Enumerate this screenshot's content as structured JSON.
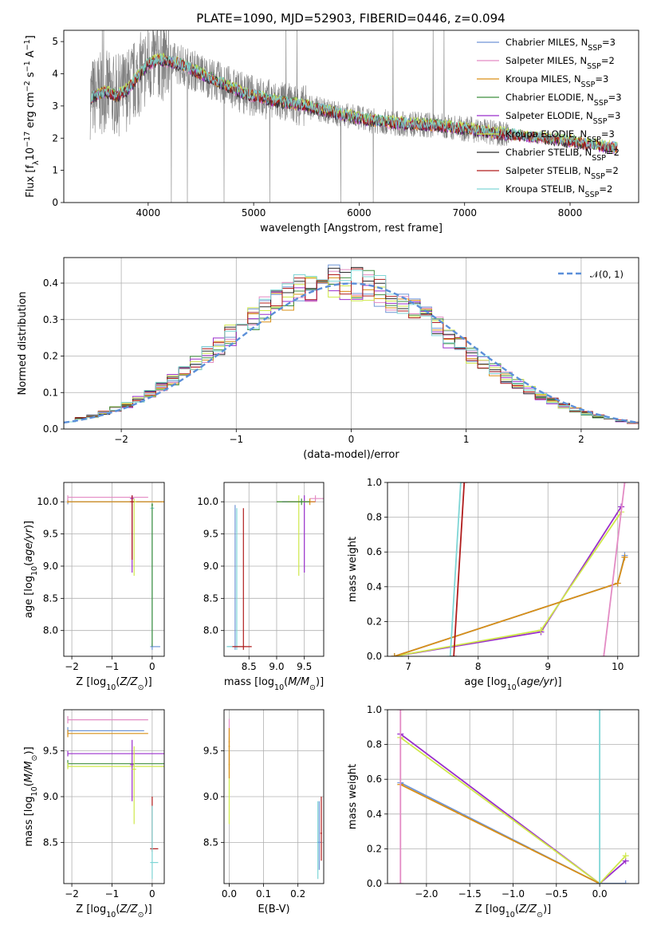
{
  "colors": {
    "Chabrier MILES": "#6f95d6",
    "Salpeter MILES": "#e38bc4",
    "Kroupa MILES": "#d98f16",
    "Chabrier ELODIE": "#3f8f3f",
    "Salpeter ELODIE": "#9a2fcc",
    "Kroupa ELODIE": "#cfe84a",
    "Chabrier STELIB": "#2a2a2a",
    "Salpeter STELIB": "#b01c1c",
    "Kroupa STELIB": "#7fd6d6",
    "data": "#808080",
    "normal": "#5b8fd9"
  },
  "chart_data": [
    {
      "id": "spectrum",
      "type": "line",
      "title": "PLATE=1090, MJD=52903, FIBERID=0446, z=0.094",
      "xlabel": "wavelength [Angstrom, rest frame]",
      "ylabel": "Flux [fλ10⁻¹⁷ erg cm⁻² s⁻¹ A⁻¹]",
      "xlim": [
        3200,
        8650
      ],
      "ylim": [
        0,
        5.35
      ],
      "xticks": [
        4000,
        5000,
        6000,
        7000,
        8000
      ],
      "yticks": [
        0,
        1,
        2,
        3,
        4,
        5
      ],
      "legend_position": "top-right",
      "legend": [
        {
          "label": "Chabrier MILES, N",
          "sub": "SSP",
          "eq": "=3"
        },
        {
          "label": "Salpeter MILES, N",
          "sub": "SSP",
          "eq": "=2"
        },
        {
          "label": "Kroupa MILES, N",
          "sub": "SSP",
          "eq": "=3"
        },
        {
          "label": "Chabrier ELODIE, N",
          "sub": "SSP",
          "eq": "=3"
        },
        {
          "label": "Salpeter ELODIE, N",
          "sub": "SSP",
          "eq": "=3"
        },
        {
          "label": "Kroupa ELODIE, N",
          "sub": "SSP",
          "eq": "=3"
        },
        {
          "label": "Chabrier STELIB, N",
          "sub": "SSP",
          "eq": "=2"
        },
        {
          "label": "Salpeter STELIB, N",
          "sub": "SSP",
          "eq": "=2"
        },
        {
          "label": "Kroupa STELIB, N",
          "sub": "SSP",
          "eq": "=2"
        }
      ],
      "continuum_x": [
        3450,
        3600,
        3700,
        3800,
        3900,
        4000,
        4100,
        4300,
        4500,
        4700,
        4900,
        5200,
        5500,
        5800,
        6100,
        6400,
        6700,
        7000,
        7300,
        7600,
        7900,
        8200,
        8400
      ],
      "continuum_y": [
        3.25,
        3.45,
        3.3,
        3.5,
        3.9,
        4.3,
        4.45,
        4.3,
        4.0,
        3.7,
        3.4,
        3.15,
        3.0,
        2.75,
        2.55,
        2.45,
        2.4,
        2.3,
        2.15,
        2.05,
        1.95,
        1.8,
        1.7
      ]
    },
    {
      "id": "residuals",
      "type": "bar",
      "xlabel": "(data-model)/error",
      "ylabel": "Normed distribution",
      "xlim": [
        -2.5,
        2.5
      ],
      "ylim": [
        0,
        0.47
      ],
      "xticks": [
        -2,
        -1,
        0,
        1,
        2
      ],
      "yticks": [
        0.0,
        0.1,
        0.2,
        0.3,
        0.4
      ],
      "bin_edges_start": -2.5,
      "bin_width": 0.1,
      "normal_curve": {
        "label": "𝒩(0, 1)",
        "mean": 0,
        "sigma": 1
      }
    },
    {
      "id": "age-vs-Z",
      "type": "scatter",
      "xlabel": "Z [log10(Z/Z⊙)]",
      "ylabel": "age  [log10(age/yr)]",
      "xlim": [
        -2.2,
        0.3
      ],
      "ylim": [
        7.6,
        10.3
      ],
      "xticks": [
        -2,
        -1,
        0
      ],
      "yticks": [
        8.0,
        8.5,
        9.0,
        9.5,
        10.0
      ]
    },
    {
      "id": "age-vs-mass",
      "type": "scatter",
      "xlabel": "mass [log10(M/M⊙)]",
      "ylabel": "",
      "xlim": [
        8.05,
        9.85
      ],
      "ylim": [
        7.6,
        10.3
      ],
      "xticks": [
        8.5,
        9.0,
        9.5
      ],
      "yticks": [
        8.0,
        8.5,
        9.0,
        9.5,
        10.0
      ]
    },
    {
      "id": "weight-vs-age",
      "type": "line",
      "xlabel": "age  [log10(age/yr)]",
      "ylabel": "mass weight",
      "xlim": [
        6.7,
        10.3
      ],
      "ylim": [
        0,
        1
      ],
      "xticks": [
        7,
        8,
        9,
        10
      ],
      "yticks": [
        0.0,
        0.2,
        0.4,
        0.6,
        0.8,
        1.0
      ]
    },
    {
      "id": "mass-vs-Z",
      "type": "scatter",
      "xlabel": "Z [log10(Z/Z⊙)]",
      "ylabel": "mass [log10(M/M⊙)]",
      "xlim": [
        -2.2,
        0.3
      ],
      "ylim": [
        8.05,
        9.95
      ],
      "xticks": [
        -2,
        -1,
        0
      ],
      "yticks": [
        8.5,
        9.0,
        9.5
      ]
    },
    {
      "id": "mass-vs-ebv",
      "type": "scatter",
      "xlabel": "E(B-V)",
      "ylabel": "",
      "xlim": [
        -0.015,
        0.275
      ],
      "ylim": [
        8.05,
        9.95
      ],
      "xticks": [
        0.0,
        0.1,
        0.2
      ],
      "yticks": [
        8.5,
        9.0,
        9.5
      ]
    },
    {
      "id": "weight-vs-Z",
      "type": "line",
      "xlabel": "Z [log10(Z/Z⊙)]",
      "ylabel": "mass weight",
      "xlim": [
        -2.45,
        0.45
      ],
      "ylim": [
        0,
        1
      ],
      "xticks": [
        -2.0,
        -1.5,
        -1.0,
        -0.5,
        0.0
      ],
      "yticks": [
        0.0,
        0.2,
        0.4,
        0.6,
        0.8,
        1.0
      ]
    }
  ]
}
